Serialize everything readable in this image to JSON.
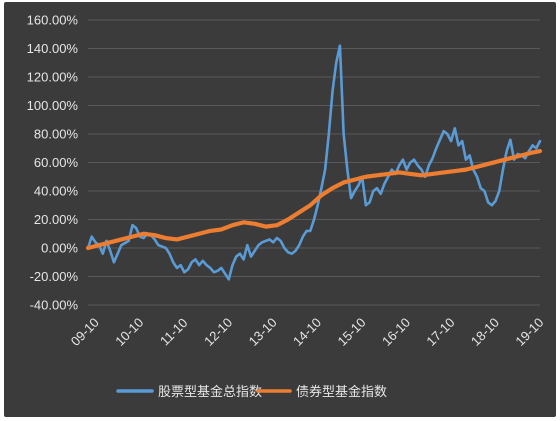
{
  "chart_data": {
    "type": "line",
    "title": "",
    "xlabel": "",
    "ylabel": "",
    "x_ticks": [
      "09-10",
      "10-10",
      "11-10",
      "12-10",
      "13-10",
      "14-10",
      "15-10",
      "16-10",
      "17-10",
      "18-10",
      "19-10"
    ],
    "y_ticks": [
      "160.00%",
      "140.00%",
      "120.00%",
      "100.00%",
      "80.00%",
      "60.00%",
      "40.00%",
      "20.00%",
      "0.00%",
      "-20.00%",
      "-40.00%"
    ],
    "ylim": [
      -40,
      160
    ],
    "xlim": [
      "2009-10",
      "2019-12"
    ],
    "grid": true,
    "legend_position": "bottom",
    "series": [
      {
        "name": "股票型基金总指数",
        "color": "#5b9bd5",
        "points": [
          [
            "2009-10",
            0
          ],
          [
            "2009-11",
            8
          ],
          [
            "2009-12",
            4
          ],
          [
            "2010-01",
            2
          ],
          [
            "2010-02",
            -4
          ],
          [
            "2010-03",
            5
          ],
          [
            "2010-04",
            -2
          ],
          [
            "2010-05",
            -10
          ],
          [
            "2010-06",
            -4
          ],
          [
            "2010-07",
            2
          ],
          [
            "2010-09",
            5
          ],
          [
            "2010-10",
            16
          ],
          [
            "2010-11",
            14
          ],
          [
            "2010-12",
            8
          ],
          [
            "2011-01",
            7
          ],
          [
            "2011-02",
            10
          ],
          [
            "2011-03",
            9
          ],
          [
            "2011-04",
            6
          ],
          [
            "2011-05",
            2
          ],
          [
            "2011-06",
            1
          ],
          [
            "2011-07",
            0
          ],
          [
            "2011-08",
            -4
          ],
          [
            "2011-09",
            -10
          ],
          [
            "2011-10",
            -14
          ],
          [
            "2011-11",
            -12
          ],
          [
            "2011-12",
            -17
          ],
          [
            "2012-01",
            -15
          ],
          [
            "2012-02",
            -10
          ],
          [
            "2012-03",
            -8
          ],
          [
            "2012-04",
            -12
          ],
          [
            "2012-05",
            -9
          ],
          [
            "2012-06",
            -12
          ],
          [
            "2012-07",
            -14
          ],
          [
            "2012-08",
            -17
          ],
          [
            "2012-09",
            -16
          ],
          [
            "2012-10",
            -14
          ],
          [
            "2012-11",
            -18
          ],
          [
            "2012-12",
            -22
          ],
          [
            "2013-01",
            -12
          ],
          [
            "2013-02",
            -6
          ],
          [
            "2013-03",
            -4
          ],
          [
            "2013-04",
            -8
          ],
          [
            "2013-05",
            2
          ],
          [
            "2013-06",
            -6
          ],
          [
            "2013-07",
            -2
          ],
          [
            "2013-08",
            2
          ],
          [
            "2013-09",
            4
          ],
          [
            "2013-10",
            5
          ],
          [
            "2013-11",
            6
          ],
          [
            "2013-12",
            4
          ],
          [
            "2014-01",
            7
          ],
          [
            "2014-02",
            5
          ],
          [
            "2014-03",
            0
          ],
          [
            "2014-04",
            -3
          ],
          [
            "2014-05",
            -4
          ],
          [
            "2014-06",
            -2
          ],
          [
            "2014-07",
            2
          ],
          [
            "2014-08",
            8
          ],
          [
            "2014-09",
            12
          ],
          [
            "2014-10",
            12
          ],
          [
            "2014-11",
            20
          ],
          [
            "2014-12",
            30
          ],
          [
            "2015-01",
            42
          ],
          [
            "2015-02",
            55
          ],
          [
            "2015-03",
            80
          ],
          [
            "2015-04",
            110
          ],
          [
            "2015-05",
            130
          ],
          [
            "2015-06",
            142
          ],
          [
            "2015-07",
            80
          ],
          [
            "2015-08",
            55
          ],
          [
            "2015-09",
            35
          ],
          [
            "2015-10",
            40
          ],
          [
            "2015-11",
            44
          ],
          [
            "2015-12",
            50
          ],
          [
            "2016-01",
            30
          ],
          [
            "2016-02",
            32
          ],
          [
            "2016-03",
            40
          ],
          [
            "2016-04",
            42
          ],
          [
            "2016-05",
            38
          ],
          [
            "2016-06",
            45
          ],
          [
            "2016-07",
            50
          ],
          [
            "2016-08",
            55
          ],
          [
            "2016-09",
            52
          ],
          [
            "2016-10",
            58
          ],
          [
            "2016-11",
            62
          ],
          [
            "2016-12",
            55
          ],
          [
            "2017-01",
            60
          ],
          [
            "2017-02",
            62
          ],
          [
            "2017-03",
            58
          ],
          [
            "2017-04",
            55
          ],
          [
            "2017-05",
            50
          ],
          [
            "2017-06",
            58
          ],
          [
            "2017-07",
            63
          ],
          [
            "2017-08",
            70
          ],
          [
            "2017-09",
            76
          ],
          [
            "2017-10",
            82
          ],
          [
            "2017-11",
            80
          ],
          [
            "2017-12",
            75
          ],
          [
            "2018-01",
            84
          ],
          [
            "2018-02",
            72
          ],
          [
            "2018-03",
            75
          ],
          [
            "2018-04",
            62
          ],
          [
            "2018-05",
            65
          ],
          [
            "2018-06",
            55
          ],
          [
            "2018-07",
            50
          ],
          [
            "2018-08",
            42
          ],
          [
            "2018-09",
            40
          ],
          [
            "2018-10",
            32
          ],
          [
            "2018-11",
            30
          ],
          [
            "2018-12",
            33
          ],
          [
            "2019-01",
            40
          ],
          [
            "2019-02",
            55
          ],
          [
            "2019-03",
            68
          ],
          [
            "2019-04",
            76
          ],
          [
            "2019-05",
            62
          ],
          [
            "2019-06",
            66
          ],
          [
            "2019-07",
            65
          ],
          [
            "2019-08",
            63
          ],
          [
            "2019-09",
            68
          ],
          [
            "2019-10",
            72
          ],
          [
            "2019-11",
            70
          ],
          [
            "2019-12",
            75
          ]
        ]
      },
      {
        "name": "债券型基金指数",
        "color": "#ed7d31",
        "points": [
          [
            "2009-10",
            0
          ],
          [
            "2010-01",
            2
          ],
          [
            "2010-04",
            4
          ],
          [
            "2010-07",
            6
          ],
          [
            "2010-10",
            8
          ],
          [
            "2011-01",
            10
          ],
          [
            "2011-04",
            9
          ],
          [
            "2011-07",
            7
          ],
          [
            "2011-10",
            6
          ],
          [
            "2012-01",
            8
          ],
          [
            "2012-04",
            10
          ],
          [
            "2012-07",
            12
          ],
          [
            "2012-10",
            13
          ],
          [
            "2013-01",
            16
          ],
          [
            "2013-04",
            18
          ],
          [
            "2013-07",
            17
          ],
          [
            "2013-10",
            15
          ],
          [
            "2014-01",
            16
          ],
          [
            "2014-04",
            20
          ],
          [
            "2014-07",
            25
          ],
          [
            "2014-10",
            30
          ],
          [
            "2015-01",
            37
          ],
          [
            "2015-04",
            42
          ],
          [
            "2015-07",
            46
          ],
          [
            "2015-10",
            48
          ],
          [
            "2016-01",
            50
          ],
          [
            "2016-04",
            51
          ],
          [
            "2016-07",
            52
          ],
          [
            "2016-10",
            53
          ],
          [
            "2017-01",
            52
          ],
          [
            "2017-04",
            51
          ],
          [
            "2017-07",
            52
          ],
          [
            "2017-10",
            53
          ],
          [
            "2018-01",
            54
          ],
          [
            "2018-04",
            55
          ],
          [
            "2018-07",
            57
          ],
          [
            "2018-10",
            59
          ],
          [
            "2019-01",
            61
          ],
          [
            "2019-04",
            63
          ],
          [
            "2019-07",
            65
          ],
          [
            "2019-10",
            67
          ],
          [
            "2019-12",
            68
          ]
        ]
      }
    ]
  }
}
